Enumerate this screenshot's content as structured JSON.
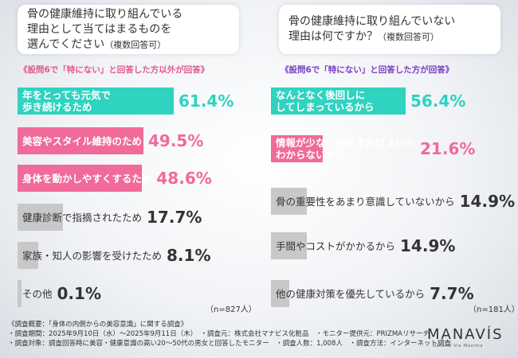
{
  "questions": {
    "left": {
      "text": "骨の健康維持に取り組んでいる\n理由として当てはまるものを\n選んでください",
      "suffix": "（複数回答可）"
    },
    "right": {
      "text": "骨の健康維持に取り組んでいない\n理由は何ですか？",
      "suffix": "（複数回答可）"
    }
  },
  "notes": {
    "left": "《設問6で「特にない」と回答した方以外が回答》",
    "right": "《設問6で「特にない」と回答した方が回答》"
  },
  "sample_sizes": {
    "left": "（n=827人）",
    "right": "（n=181人）"
  },
  "colors": {
    "teal": "#2fd3c0",
    "pink": "#f06a9a",
    "gray": "#c8c8c8",
    "pct_dark": "#333333"
  },
  "chart_data": [
    {
      "type": "bar",
      "orientation": "horizontal",
      "unit": "%",
      "categories": [
        "年をとっても元気で\n歩き続けるため",
        "美容やスタイル維持のため",
        "身体を動かしやすくするため",
        "健康診断で指摘されたため",
        "家族・知人の影響を受けたため",
        "その他"
      ],
      "values": [
        61.4,
        49.5,
        48.6,
        17.7,
        8.1,
        0.1
      ],
      "labels": [
        "61.4%",
        "49.5%",
        "48.6%",
        "17.7%",
        "8.1%",
        "0.1%"
      ],
      "xlim": [
        0,
        100
      ]
    },
    {
      "type": "bar",
      "orientation": "horizontal",
      "unit": "%",
      "categories": [
        "なんとなく後回しに\nしてしまっているから",
        "情報が少なく何をすればよいか\nわからないから",
        "骨の重要性をあまり意識していないから",
        "手間やコストがかかるから",
        "他の健康対策を優先しているから"
      ],
      "values": [
        56.4,
        21.6,
        14.9,
        14.9,
        7.7
      ],
      "labels": [
        "56.4%",
        "21.6%",
        "14.9%",
        "14.9%",
        "7.7%"
      ],
      "xlim": [
        0,
        100
      ]
    }
  ],
  "footer": {
    "line1": "《調査概要：「身体の内側からの美容意識」に関する調査》",
    "line2": "・調査期間：2025年9月10日（水）～2025年9月11日（木）　・調査元：株式会社マナビス化粧品　・モニター提供元：PRIZMAリサーチ",
    "line3": "・調査対象：調査回答時に美容・健康意識の高い20～50代の男女と回答したモニター　・調査人数：1,008人　・調査方法：インターネット調査"
  },
  "logo": {
    "name": "MANAVÍS",
    "tagline": "Natural Via Maxima"
  }
}
